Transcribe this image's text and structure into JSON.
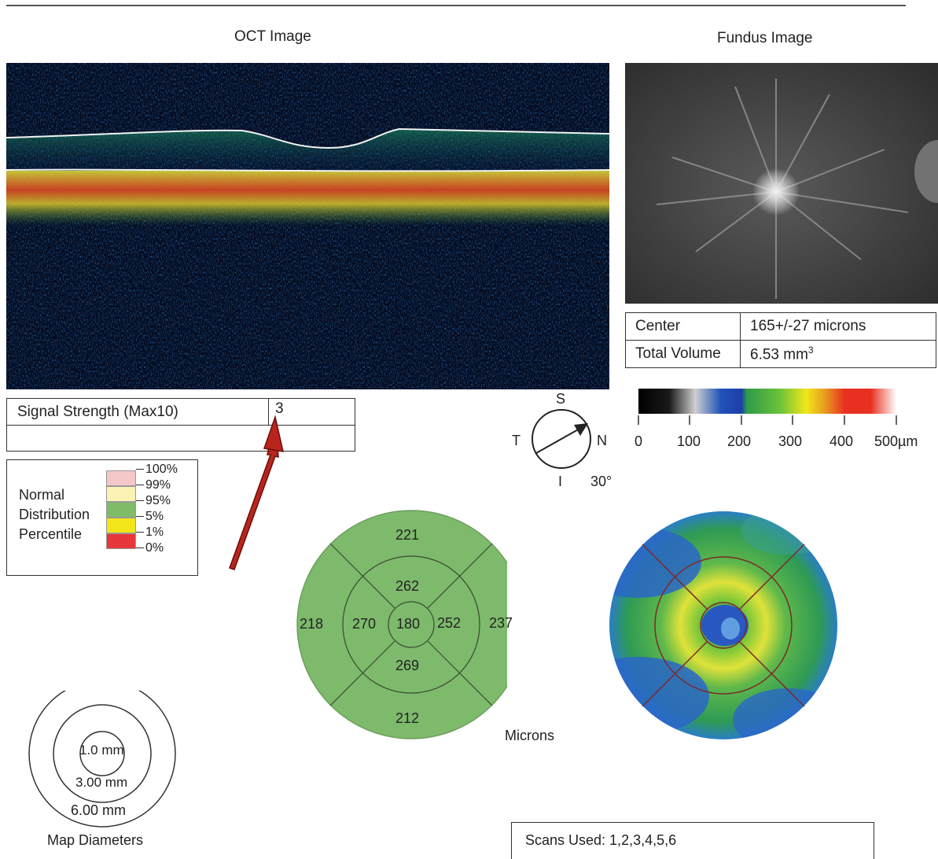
{
  "headings": {
    "oct": "OCT Image",
    "fundus": "Fundus Image"
  },
  "measurements": {
    "center_label": "Center",
    "center_value": "165+/-27 microns",
    "volume_label": "Total Volume",
    "volume_value": "6.53 mm",
    "volume_unit_sup": "3"
  },
  "color_scale": {
    "ticks": [
      "0",
      "100",
      "200",
      "300",
      "400",
      "500µm"
    ],
    "colors": [
      "#000000",
      "#1a3fa8",
      "#2a8a3a",
      "#f2e61a",
      "#e83020",
      "#ffffff"
    ]
  },
  "signal": {
    "label": "Signal Strength (Max10)",
    "value": "3"
  },
  "orientation": {
    "s": "S",
    "t": "T",
    "n": "N",
    "i": "I",
    "angle": "30°"
  },
  "legend": {
    "title_lines": [
      "Normal",
      "Distribution",
      "Percentile"
    ],
    "percentiles": [
      "100%",
      "99%",
      "95%",
      "5%",
      "1%",
      "0%"
    ],
    "swatches": [
      "#f4c7c9",
      "#fbf2b5",
      "#7fbc68",
      "#f2e61a",
      "#e8373a"
    ]
  },
  "thickness_map": {
    "center": "180",
    "inner": {
      "superior": "262",
      "temporal": "270",
      "nasal": "252",
      "inferior": "269"
    },
    "outer": {
      "superior": "221",
      "temporal": "218",
      "nasal": "237",
      "inferior": "212"
    },
    "unit": "Microns",
    "fill_color": "#7dba6b"
  },
  "map_diameters": {
    "inner": "1.0 mm",
    "middle": "3.00 mm",
    "outer": "6.00 mm",
    "caption": "Map Diameters"
  },
  "scans": {
    "label": "Scans Used: 1,2,3,4,5,6"
  }
}
